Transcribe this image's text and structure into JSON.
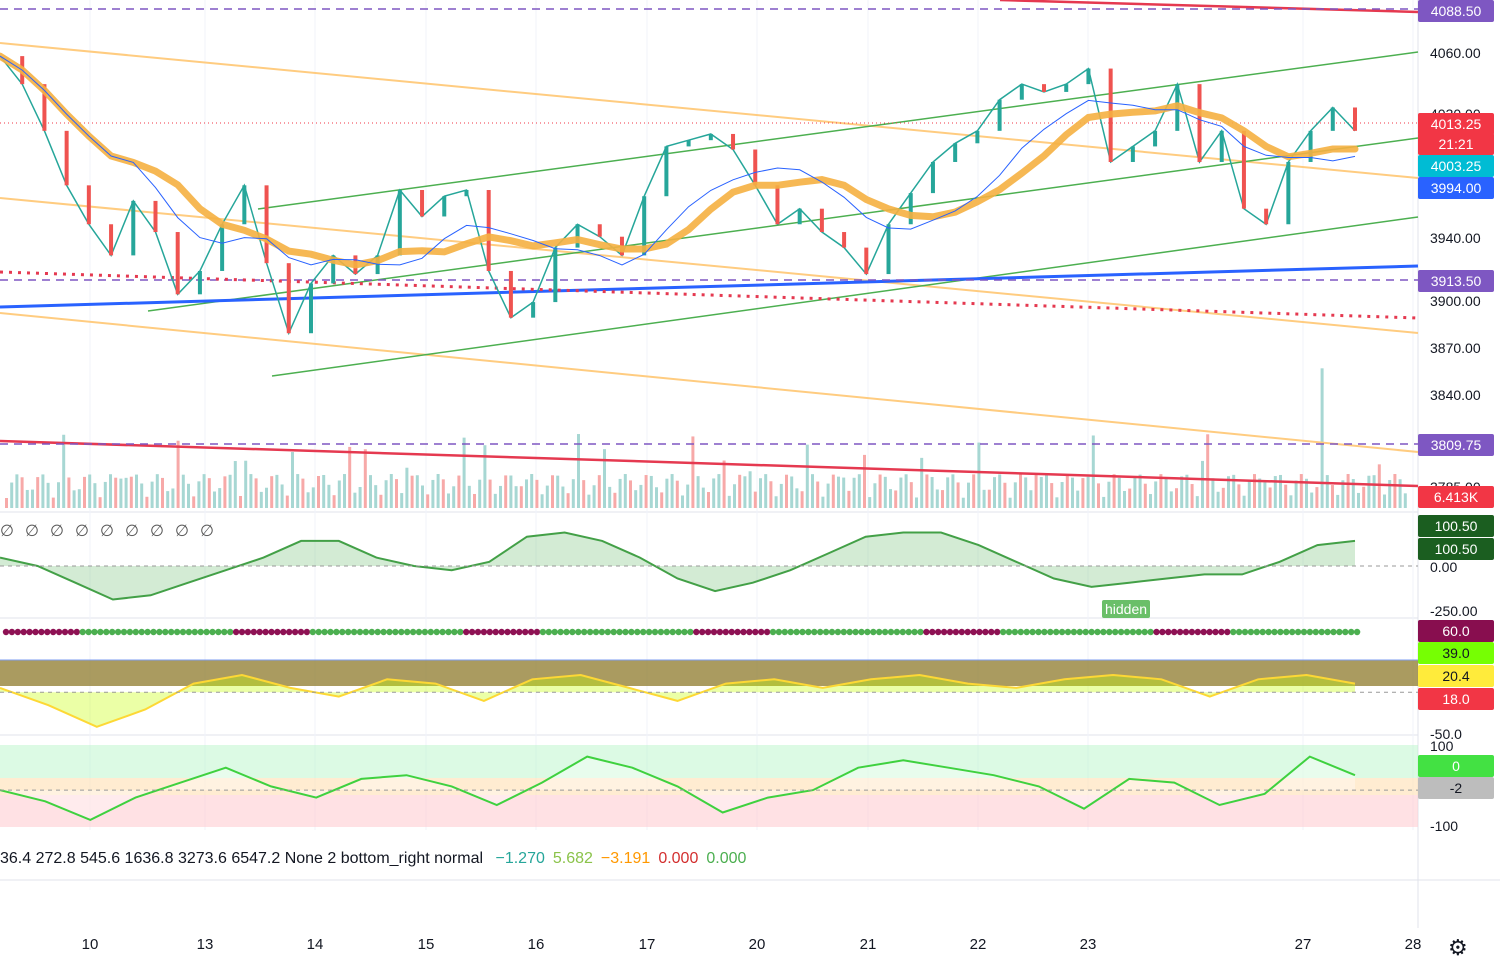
{
  "chart_data": {
    "type": "line",
    "price_axis_ticks": [
      "4060.00",
      "4030.00",
      "3940.00",
      "3900.00",
      "3870.00",
      "3840.00",
      "3785.00"
    ],
    "price_tags": [
      {
        "label": "4088.50",
        "color": "#7e57c2"
      },
      {
        "label": "4013.25",
        "color": "#f23645"
      },
      {
        "label": "21:21",
        "color": "#f23645"
      },
      {
        "label": "4003.25",
        "color": "#00bcd4"
      },
      {
        "label": "3994.00",
        "color": "#2962ff"
      },
      {
        "label": "3913.50",
        "color": "#7e57c2"
      },
      {
        "label": "3809.75",
        "color": "#7e57c2"
      },
      {
        "label": "6.413K",
        "color": "#f23645"
      }
    ],
    "x_ticks": [
      "10",
      "13",
      "14",
      "15",
      "16",
      "17",
      "20",
      "21",
      "22",
      "23",
      "27",
      "28"
    ],
    "close_series": [
      4058,
      4040,
      4010,
      3975,
      3950,
      3930,
      3965,
      3945,
      3905,
      3920,
      3950,
      3975,
      3925,
      3880,
      3912,
      3930,
      3918,
      3930,
      3972,
      3955,
      3968,
      3972,
      3920,
      3890,
      3900,
      3935,
      3950,
      3942,
      3930,
      3968,
      4000,
      4004,
      4008,
      3998,
      3975,
      3950,
      3960,
      3945,
      3935,
      3918,
      3950,
      3970,
      3990,
      4002,
      4010,
      4030,
      4040,
      4035,
      4040,
      4050,
      3990,
      4000,
      4010,
      4040,
      3990,
      4010,
      3960,
      3950,
      3990,
      4010,
      4025,
      4010
    ],
    "osc1": {
      "levels": [
        "100.50",
        "100.50",
        "0.00",
        "-250.00"
      ],
      "values": [
        20,
        0,
        -40,
        -80,
        -70,
        -40,
        -10,
        20,
        60,
        60,
        20,
        0,
        -10,
        10,
        70,
        80,
        60,
        20,
        -30,
        -60,
        -40,
        -10,
        30,
        70,
        80,
        80,
        50,
        10,
        -30,
        -50,
        -40,
        -30,
        -20,
        -20,
        10,
        50,
        60
      ]
    },
    "osc2": {
      "levels": [
        "60.0",
        "39.0",
        "20.4",
        "18.0",
        "-50.0"
      ],
      "values": [
        10,
        -30,
        -80,
        -40,
        20,
        40,
        10,
        -10,
        30,
        20,
        -20,
        30,
        40,
        10,
        -20,
        20,
        30,
        10,
        30,
        40,
        20,
        10,
        30,
        40,
        30,
        -10,
        30,
        40,
        20
      ]
    },
    "osc3": {
      "levels": [
        "100",
        "0",
        "-2",
        "-100"
      ],
      "values": [
        0,
        -30,
        -80,
        -20,
        20,
        60,
        10,
        -20,
        30,
        40,
        10,
        -40,
        20,
        90,
        60,
        10,
        -60,
        -20,
        0,
        60,
        80,
        60,
        40,
        10,
        -50,
        30,
        20,
        -40,
        -10,
        90,
        40
      ]
    },
    "legend_values": [
      "36.4",
      "272.8",
      "545.6",
      "1636.8",
      "3273.6",
      "6547.2",
      "None",
      "2",
      "bottom_right",
      "normal"
    ],
    "study_values": [
      {
        "value": "−1.270",
        "color": "#26a69a"
      },
      {
        "value": "5.682",
        "color": "#8bc34a"
      },
      {
        "value": "−3.191",
        "color": "#ff9800"
      },
      {
        "value": "0.000",
        "color": "#d32f2f"
      },
      {
        "value": "0.000",
        "color": "#4caf50"
      }
    ]
  },
  "badges": {
    "hidden": "hidden"
  },
  "null_symbol": "∅",
  "icons": {
    "settings": "gear-icon"
  }
}
